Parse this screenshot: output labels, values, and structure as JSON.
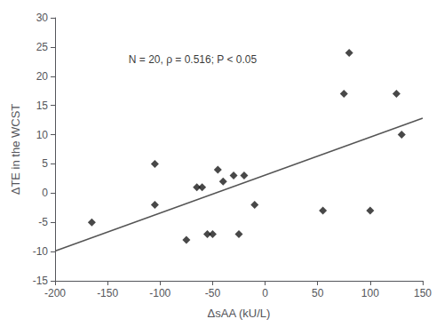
{
  "chart_data": {
    "type": "scatter",
    "x": [
      -165,
      -105,
      -105,
      -75,
      -65,
      -60,
      -55,
      -50,
      -45,
      -40,
      -30,
      -25,
      -20,
      -10,
      55,
      75,
      80,
      100,
      125,
      130
    ],
    "values": [
      -5,
      5,
      -2,
      -8,
      1,
      1,
      -7,
      -7,
      4,
      2,
      3,
      -7,
      3,
      -2,
      -3,
      17,
      24,
      -3,
      17,
      10
    ],
    "color": "#1a1a1a",
    "marker": "diamond",
    "trendline": {
      "x": [
        -200,
        150
      ],
      "values": [
        -9.9104,
        12.8145
      ],
      "color": "#555555"
    },
    "annotation": {
      "text": "N = 20, ρ = 0.516; P < 0.05",
      "x": -130,
      "y": 22
    },
    "xlabel": "ΔsAA (kU/L)",
    "ylabel": "ΔTE in the WCST",
    "xlim": [
      -200,
      150
    ],
    "ylim": [
      -15,
      30
    ],
    "xticks": [
      -200,
      -150,
      -100,
      -50,
      0,
      50,
      100,
      150
    ],
    "yticks": [
      -15,
      -10,
      -5,
      0,
      5,
      10,
      15,
      20,
      25,
      30
    ],
    "grid": false
  }
}
